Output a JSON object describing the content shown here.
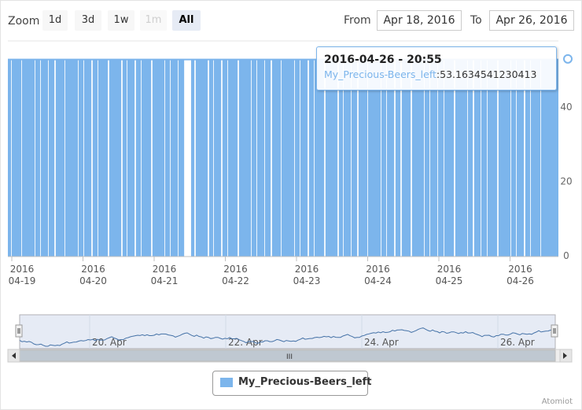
{
  "toolbar": {
    "zoom_label": "Zoom",
    "zoom_buttons": [
      {
        "label": "1d",
        "state": "normal"
      },
      {
        "label": "3d",
        "state": "normal"
      },
      {
        "label": "1w",
        "state": "normal"
      },
      {
        "label": "1m",
        "state": "disabled"
      },
      {
        "label": "All",
        "state": "active"
      }
    ],
    "from_label": "From",
    "from_value": "Apr 18, 2016",
    "to_label": "To",
    "to_value": "Apr 26, 2016"
  },
  "tooltip": {
    "title": "2016-04-26 - 20:55",
    "series": "My_Precious-Beers_left",
    "value": "53.1634541230413"
  },
  "legend": {
    "label": "My_Precious-Beers_left"
  },
  "credits": "Atomiot",
  "navigator": {
    "labels": [
      "20. Apr",
      "22. Apr",
      "24. Apr",
      "26. Apr"
    ],
    "scroll_grip": "III"
  },
  "colors": {
    "series": "#7cb5ec",
    "navigator_fill": "#e6ebf5",
    "navigator_line": "#4572a7"
  },
  "chart_data": {
    "type": "area",
    "series": [
      {
        "name": "My_Precious-Beers_left"
      }
    ],
    "x_range": [
      "2016-04-18",
      "2016-04-26 20:55"
    ],
    "xticks": [
      {
        "year": "2016",
        "date": "04-19"
      },
      {
        "year": "2016",
        "date": "04-20"
      },
      {
        "year": "2016",
        "date": "04-21"
      },
      {
        "year": "2016",
        "date": "04-22"
      },
      {
        "year": "2016",
        "date": "04-23"
      },
      {
        "year": "2016",
        "date": "04-24"
      },
      {
        "year": "2016",
        "date": "04-25"
      },
      {
        "year": "2016",
        "date": "04-26"
      }
    ],
    "yticks": [
      "0",
      "20",
      "40"
    ],
    "ylim": [
      0,
      58
    ],
    "typical_value": 53,
    "last_point": {
      "x": "2016-04-26 20:55",
      "y": 53.1634541230413
    },
    "yaxis_side": "right",
    "legend_position": "bottom-center"
  }
}
